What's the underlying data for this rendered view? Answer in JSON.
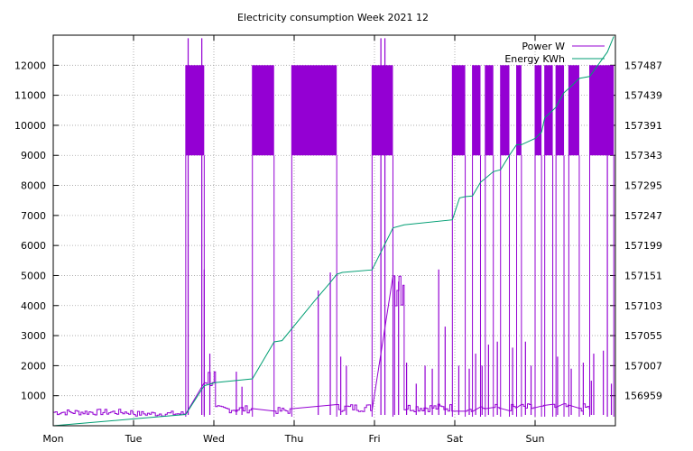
{
  "chart_data": {
    "type": "line",
    "title": "Electricity consumption Week 2021 12",
    "xlabel": "",
    "ylabel": "",
    "x_tick_labels": [
      "Mon",
      "Tue",
      "Wed",
      "Thu",
      "Fri",
      "Sat",
      "Sun"
    ],
    "x_range_days": [
      0,
      7
    ],
    "y_left": {
      "range": [
        0,
        13000
      ],
      "ticks": [
        1000,
        2000,
        3000,
        4000,
        5000,
        6000,
        7000,
        8000,
        9000,
        10000,
        11000,
        12000
      ]
    },
    "y_right": {
      "range": [
        156911,
        157535
      ],
      "ticks": [
        156959,
        157007,
        157055,
        157103,
        157151,
        157199,
        157247,
        157295,
        157343,
        157391,
        157439,
        157487
      ]
    },
    "grid": true,
    "legend_position": "top-right",
    "colors": {
      "power": "#9400d3",
      "energy": "#009e73"
    },
    "series": [
      {
        "name": "Power W",
        "axis": "left",
        "base_blocks": [
          {
            "start": 0.0,
            "end": 1.0,
            "value": 450
          },
          {
            "start": 1.0,
            "end": 1.65,
            "value": 400
          },
          {
            "start": 1.65,
            "end": 1.88,
            "value": 12000
          },
          {
            "start": 1.88,
            "end": 2.02,
            "value": 1600
          },
          {
            "start": 2.02,
            "end": 2.48,
            "value": 550
          },
          {
            "start": 2.48,
            "end": 2.75,
            "value": 12000
          },
          {
            "start": 2.75,
            "end": 2.97,
            "value": 500
          },
          {
            "start": 2.97,
            "end": 3.53,
            "value": 12000
          },
          {
            "start": 3.53,
            "end": 3.97,
            "value": 600
          },
          {
            "start": 3.97,
            "end": 4.23,
            "value": 12000
          },
          {
            "start": 4.23,
            "end": 4.37,
            "value": 5000
          },
          {
            "start": 4.37,
            "end": 4.97,
            "value": 600
          },
          {
            "start": 4.97,
            "end": 5.13,
            "value": 12000
          },
          {
            "start": 5.13,
            "end": 5.22,
            "value": 600
          },
          {
            "start": 5.22,
            "end": 5.32,
            "value": 12000
          },
          {
            "start": 5.32,
            "end": 5.38,
            "value": 600
          },
          {
            "start": 5.38,
            "end": 5.48,
            "value": 12000
          },
          {
            "start": 5.48,
            "end": 5.57,
            "value": 600
          },
          {
            "start": 5.57,
            "end": 5.68,
            "value": 12000
          },
          {
            "start": 5.68,
            "end": 5.77,
            "value": 600
          },
          {
            "start": 5.77,
            "end": 5.83,
            "value": 12000
          },
          {
            "start": 5.83,
            "end": 6.0,
            "value": 600
          },
          {
            "start": 6.0,
            "end": 6.08,
            "value": 12000
          },
          {
            "start": 6.08,
            "end": 6.12,
            "value": 600
          },
          {
            "start": 6.12,
            "end": 6.22,
            "value": 12000
          },
          {
            "start": 6.22,
            "end": 6.26,
            "value": 600
          },
          {
            "start": 6.26,
            "end": 6.36,
            "value": 12000
          },
          {
            "start": 6.36,
            "end": 6.42,
            "value": 600
          },
          {
            "start": 6.42,
            "end": 6.55,
            "value": 12000
          },
          {
            "start": 6.55,
            "end": 6.68,
            "value": 600
          },
          {
            "start": 6.68,
            "end": 6.9,
            "value": 12000
          },
          {
            "start": 6.9,
            "end": 6.98,
            "value": 12000
          }
        ],
        "spikes": [
          {
            "x": 1.68,
            "value": 12900
          },
          {
            "x": 1.85,
            "value": 12900
          },
          {
            "x": 1.88,
            "value": 5200
          },
          {
            "x": 1.95,
            "value": 2400
          },
          {
            "x": 2.28,
            "value": 1800
          },
          {
            "x": 2.35,
            "value": 1300
          },
          {
            "x": 3.3,
            "value": 4500
          },
          {
            "x": 3.45,
            "value": 5100
          },
          {
            "x": 3.58,
            "value": 2300
          },
          {
            "x": 3.65,
            "value": 2000
          },
          {
            "x": 4.08,
            "value": 12900
          },
          {
            "x": 4.13,
            "value": 12900
          },
          {
            "x": 4.25,
            "value": 5000
          },
          {
            "x": 4.3,
            "value": 4800
          },
          {
            "x": 4.4,
            "value": 2100
          },
          {
            "x": 4.52,
            "value": 1400
          },
          {
            "x": 4.63,
            "value": 2000
          },
          {
            "x": 4.72,
            "value": 1900
          },
          {
            "x": 4.8,
            "value": 5200
          },
          {
            "x": 4.88,
            "value": 3300
          },
          {
            "x": 5.05,
            "value": 2000
          },
          {
            "x": 5.18,
            "value": 1900
          },
          {
            "x": 5.26,
            "value": 2400
          },
          {
            "x": 5.34,
            "value": 2000
          },
          {
            "x": 5.42,
            "value": 2700
          },
          {
            "x": 5.53,
            "value": 2800
          },
          {
            "x": 5.72,
            "value": 2600
          },
          {
            "x": 5.88,
            "value": 2800
          },
          {
            "x": 5.95,
            "value": 2000
          },
          {
            "x": 6.28,
            "value": 2300
          },
          {
            "x": 6.45,
            "value": 1900
          },
          {
            "x": 6.6,
            "value": 2100
          },
          {
            "x": 6.7,
            "value": 1500
          },
          {
            "x": 6.73,
            "value": 2400
          },
          {
            "x": 6.85,
            "value": 2500
          },
          {
            "x": 6.95,
            "value": 1400
          }
        ]
      },
      {
        "name": "Energy KWh",
        "axis": "right",
        "points": [
          {
            "x": 0.0,
            "y": 156911
          },
          {
            "x": 1.0,
            "y": 156922
          },
          {
            "x": 1.65,
            "y": 156929
          },
          {
            "x": 1.88,
            "y": 156975
          },
          {
            "x": 2.02,
            "y": 156980
          },
          {
            "x": 2.48,
            "y": 156986
          },
          {
            "x": 2.75,
            "y": 157045
          },
          {
            "x": 2.85,
            "y": 157047
          },
          {
            "x": 3.25,
            "y": 157110
          },
          {
            "x": 3.45,
            "y": 157140
          },
          {
            "x": 3.53,
            "y": 157153
          },
          {
            "x": 3.6,
            "y": 157156
          },
          {
            "x": 3.97,
            "y": 157160
          },
          {
            "x": 4.23,
            "y": 157227
          },
          {
            "x": 4.37,
            "y": 157232
          },
          {
            "x": 4.97,
            "y": 157240
          },
          {
            "x": 5.06,
            "y": 157275
          },
          {
            "x": 5.13,
            "y": 157277
          },
          {
            "x": 5.22,
            "y": 157278
          },
          {
            "x": 5.32,
            "y": 157300
          },
          {
            "x": 5.38,
            "y": 157306
          },
          {
            "x": 5.48,
            "y": 157317
          },
          {
            "x": 5.57,
            "y": 157320
          },
          {
            "x": 5.68,
            "y": 157343
          },
          {
            "x": 5.77,
            "y": 157360
          },
          {
            "x": 5.83,
            "y": 157360
          },
          {
            "x": 6.0,
            "y": 157370
          },
          {
            "x": 6.08,
            "y": 157380
          },
          {
            "x": 6.12,
            "y": 157403
          },
          {
            "x": 6.22,
            "y": 157415
          },
          {
            "x": 6.26,
            "y": 157420
          },
          {
            "x": 6.36,
            "y": 157443
          },
          {
            "x": 6.42,
            "y": 157450
          },
          {
            "x": 6.55,
            "y": 157466
          },
          {
            "x": 6.68,
            "y": 157469
          },
          {
            "x": 6.9,
            "y": 157508
          },
          {
            "x": 6.98,
            "y": 157533
          }
        ]
      }
    ]
  }
}
